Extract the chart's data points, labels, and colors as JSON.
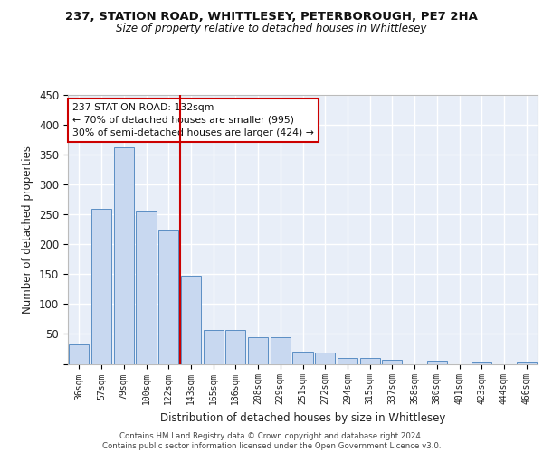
{
  "title1": "237, STATION ROAD, WHITTLESEY, PETERBOROUGH, PE7 2HA",
  "title2": "Size of property relative to detached houses in Whittlesey",
  "xlabel": "Distribution of detached houses by size in Whittlesey",
  "ylabel": "Number of detached properties",
  "categories": [
    "36sqm",
    "57sqm",
    "79sqm",
    "100sqm",
    "122sqm",
    "143sqm",
    "165sqm",
    "186sqm",
    "208sqm",
    "229sqm",
    "251sqm",
    "272sqm",
    "294sqm",
    "315sqm",
    "337sqm",
    "358sqm",
    "380sqm",
    "401sqm",
    "423sqm",
    "444sqm",
    "466sqm"
  ],
  "values": [
    32,
    259,
    363,
    256,
    225,
    148,
    57,
    57,
    45,
    45,
    20,
    19,
    10,
    10,
    7,
    0,
    6,
    0,
    4,
    0,
    4
  ],
  "bar_color": "#c8d8f0",
  "bar_edge_color": "#5b8ec4",
  "vline_index": 4,
  "vline_color": "#cc0000",
  "annotation_text": "237 STATION ROAD: 132sqm\n← 70% of detached houses are smaller (995)\n30% of semi-detached houses are larger (424) →",
  "annotation_box_color": "#ffffff",
  "annotation_box_edge": "#cc0000",
  "background_color": "#e8eef8",
  "grid_color": "#ffffff",
  "footer_text": "Contains HM Land Registry data © Crown copyright and database right 2024.\nContains public sector information licensed under the Open Government Licence v3.0.",
  "ylim": [
    0,
    450
  ],
  "yticks": [
    0,
    50,
    100,
    150,
    200,
    250,
    300,
    350,
    400,
    450
  ]
}
